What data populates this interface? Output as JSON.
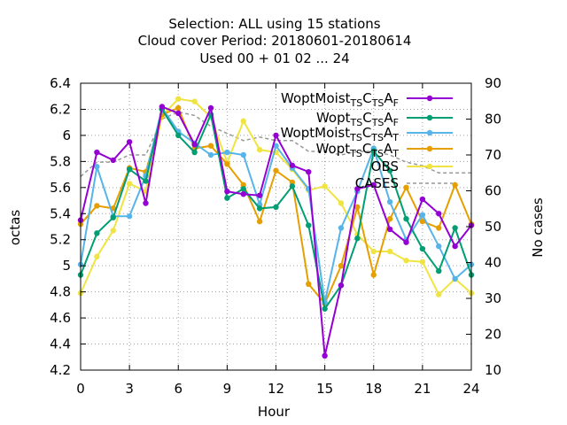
{
  "chart_data": {
    "type": "line",
    "title_lines": [
      "Selection: ALL using    15 stations",
      "Cloud cover   Period: 20180601-20180614",
      "Used  00 + 01 02 ... 24"
    ],
    "xlabel": "Hour",
    "ylabel": "octas",
    "y2label": "No cases",
    "xlim": [
      0,
      24
    ],
    "ylim": [
      4.2,
      6.4
    ],
    "y2lim": [
      10,
      90
    ],
    "xticks": [
      0,
      3,
      6,
      9,
      12,
      15,
      18,
      21,
      24
    ],
    "yticks": [
      4.2,
      4.4,
      4.6,
      4.8,
      5,
      5.2,
      5.4,
      5.6,
      5.8,
      6,
      6.2,
      6.4
    ],
    "y2ticks": [
      10,
      20,
      30,
      40,
      50,
      60,
      70,
      80,
      90
    ],
    "grid": true,
    "legend_position": "top-right",
    "x": [
      0,
      1,
      2,
      3,
      4,
      5,
      6,
      7,
      8,
      9,
      10,
      11,
      12,
      13,
      14,
      15,
      16,
      17,
      18,
      19,
      20,
      21,
      22,
      23,
      24
    ],
    "series": [
      {
        "name_parts": [
          [
            "WoptMoist",
            ""
          ],
          [
            "TS",
            "sub"
          ],
          [
            "C",
            ""
          ],
          [
            "TS",
            "sub"
          ],
          [
            "A",
            ""
          ],
          [
            "F",
            "sub"
          ]
        ],
        "color": "#9400d3",
        "marker": "circle",
        "values": [
          5.35,
          5.87,
          5.81,
          5.95,
          5.48,
          6.22,
          6.17,
          5.93,
          6.21,
          5.57,
          5.55,
          5.54,
          6.0,
          5.77,
          5.72,
          4.31,
          4.85,
          5.59,
          5.62,
          5.28,
          5.18,
          5.51,
          5.4,
          5.15,
          5.31
        ]
      },
      {
        "name_parts": [
          [
            "Wopt",
            ""
          ],
          [
            "TS",
            "sub"
          ],
          [
            "C",
            ""
          ],
          [
            "TS",
            "sub"
          ],
          [
            "A",
            ""
          ],
          [
            "F",
            "sub"
          ]
        ],
        "color": "#009e73",
        "marker": "circle",
        "values": [
          4.93,
          5.25,
          5.37,
          5.74,
          5.65,
          6.2,
          6.0,
          5.87,
          6.16,
          5.52,
          5.59,
          5.44,
          5.45,
          5.61,
          5.31,
          4.67,
          4.85,
          5.21,
          5.88,
          5.73,
          5.36,
          5.13,
          4.96,
          5.29,
          4.93
        ]
      },
      {
        "name_parts": [
          [
            "WoptMoist",
            ""
          ],
          [
            "TS",
            "sub"
          ],
          [
            "C",
            ""
          ],
          [
            "TS",
            "sub"
          ],
          [
            "A",
            ""
          ],
          [
            "T",
            "sub"
          ]
        ],
        "color": "#56b4e9",
        "marker": "circle",
        "values": [
          5.01,
          5.76,
          5.38,
          5.38,
          5.69,
          6.21,
          6.03,
          5.94,
          5.85,
          5.87,
          5.85,
          5.47,
          5.92,
          5.75,
          5.59,
          4.72,
          5.29,
          5.57,
          5.9,
          5.49,
          5.2,
          5.39,
          5.15,
          4.9,
          5.01
        ]
      },
      {
        "name_parts": [
          [
            "Wopt",
            ""
          ],
          [
            "TS",
            "sub"
          ],
          [
            "C",
            ""
          ],
          [
            "TS",
            "sub"
          ],
          [
            "A",
            ""
          ],
          [
            "T",
            "sub"
          ]
        ],
        "color": "#e69f00",
        "marker": "circle",
        "values": [
          5.32,
          5.46,
          5.44,
          5.75,
          5.72,
          6.16,
          6.21,
          5.9,
          5.92,
          5.78,
          5.62,
          5.34,
          5.73,
          5.64,
          4.86,
          4.71,
          5.0,
          5.45,
          4.93,
          5.36,
          5.6,
          5.34,
          5.29,
          5.62,
          5.32
        ]
      },
      {
        "name_parts": [
          [
            "OBS",
            ""
          ]
        ],
        "color": "#f0e442",
        "marker": "circle",
        "values": [
          4.79,
          5.07,
          5.27,
          5.63,
          5.57,
          6.15,
          6.28,
          6.26,
          6.14,
          5.79,
          6.11,
          5.89,
          5.87,
          5.74,
          5.58,
          5.61,
          5.48,
          5.24,
          5.11,
          5.11,
          5.04,
          5.03,
          4.78,
          4.9,
          4.79
        ]
      },
      {
        "name_parts": [
          [
            "CASES",
            ""
          ]
        ],
        "color": "#999999",
        "dash": true,
        "axis": "y2",
        "values": [
          64,
          68,
          68,
          70,
          70,
          80,
          82,
          81,
          78,
          76,
          74,
          75,
          74,
          74,
          71,
          71,
          70,
          71,
          71,
          70,
          68,
          67,
          65,
          65,
          65
        ]
      }
    ]
  }
}
